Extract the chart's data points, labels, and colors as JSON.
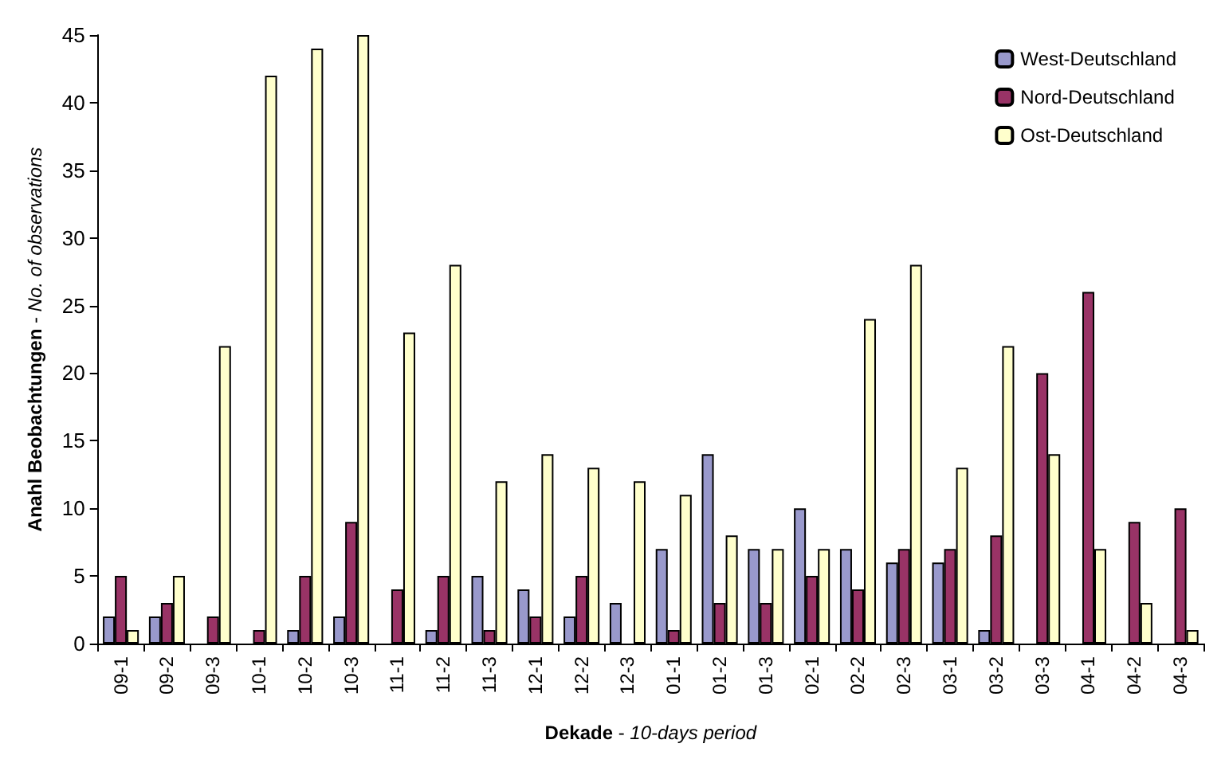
{
  "chart_data": {
    "type": "bar",
    "xlabel": "Dekade - 10-days period",
    "ylabel": "Anahl Beobachtungen - No. of observations",
    "categories": [
      "09-1",
      "09-2",
      "09-3",
      "10-1",
      "10-2",
      "10-3",
      "11-1",
      "11-2",
      "11-3",
      "12-1",
      "12-2",
      "12-3",
      "01-1",
      "01-2",
      "01-3",
      "02-1",
      "02-2",
      "02-3",
      "03-1",
      "03-2",
      "03-3",
      "04-1",
      "04-2",
      "04-3"
    ],
    "series": [
      {
        "name": "West-Deutschland",
        "color": "#9999cc",
        "values": [
          2,
          2,
          null,
          null,
          1,
          2,
          null,
          1,
          5,
          4,
          2,
          3,
          7,
          14,
          7,
          10,
          7,
          6,
          6,
          1,
          null,
          null,
          null,
          null
        ]
      },
      {
        "name": "Nord-Deutschland",
        "color": "#993366",
        "values": [
          5,
          3,
          2,
          1,
          5,
          9,
          4,
          5,
          1,
          2,
          5,
          null,
          1,
          3,
          3,
          5,
          4,
          7,
          7,
          8,
          20,
          26,
          9,
          10
        ]
      },
      {
        "name": "Ost-Deutschland",
        "color": "#ffffcc",
        "values": [
          1,
          5,
          22,
          42,
          44,
          45,
          23,
          28,
          12,
          14,
          13,
          12,
          11,
          8,
          7,
          7,
          24,
          28,
          13,
          22,
          14,
          7,
          3,
          1
        ]
      }
    ],
    "ylim": [
      0,
      45
    ],
    "yticks": [
      0,
      5,
      10,
      15,
      20,
      25,
      30,
      35,
      40,
      45
    ],
    "grid": false,
    "legend": "top right"
  }
}
